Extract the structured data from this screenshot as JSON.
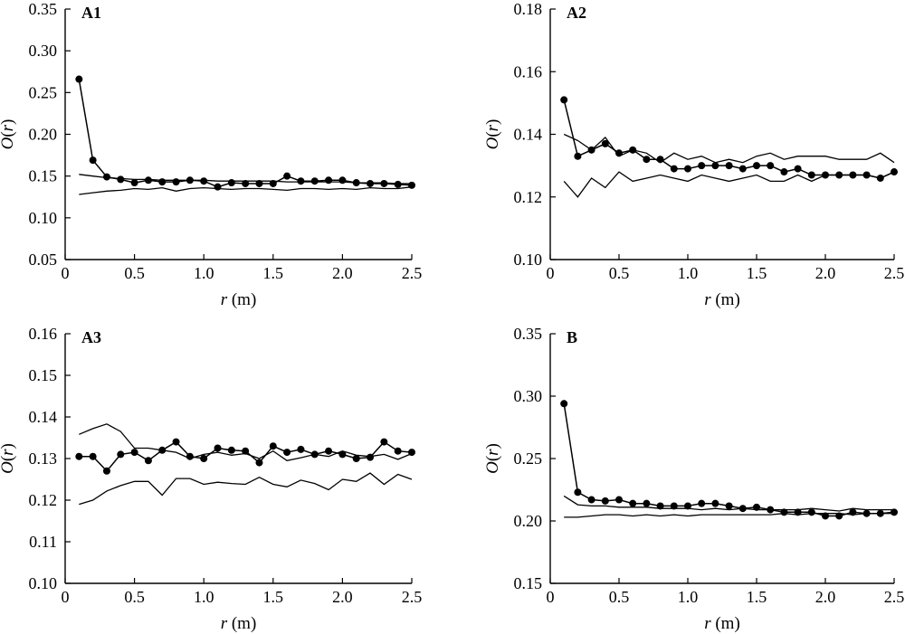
{
  "chart_data": [
    {
      "type": "line",
      "panel_label": "A1",
      "xlabel_var": "r",
      "xlabel_unit": " (m)",
      "ylabel_var": "r",
      "ylabel_fn": "O",
      "xlim": [
        0,
        2.5
      ],
      "ylim": [
        0.05,
        0.35
      ],
      "xticks": [
        0,
        0.5,
        1.0,
        1.5,
        2.0,
        2.5
      ],
      "xtick_labels": [
        "0",
        "0.5",
        "1.0",
        "1.5",
        "2.0",
        "2.5"
      ],
      "yticks": [
        0.05,
        0.1,
        0.15,
        0.2,
        0.25,
        0.3,
        0.35
      ],
      "ytick_labels": [
        "0.05",
        "0.10",
        "0.15",
        "0.20",
        "0.25",
        "0.30",
        "0.35"
      ],
      "x": [
        0.1,
        0.2,
        0.3,
        0.4,
        0.5,
        0.6,
        0.7,
        0.8,
        0.9,
        1.0,
        1.1,
        1.2,
        1.3,
        1.4,
        1.5,
        1.6,
        1.7,
        1.8,
        1.9,
        2.0,
        2.1,
        2.2,
        2.3,
        2.4,
        2.5
      ],
      "observed": [
        0.266,
        0.169,
        0.149,
        0.146,
        0.142,
        0.145,
        0.143,
        0.143,
        0.145,
        0.144,
        0.137,
        0.142,
        0.141,
        0.141,
        0.141,
        0.15,
        0.144,
        0.144,
        0.145,
        0.145,
        0.142,
        0.141,
        0.141,
        0.14,
        0.139
      ],
      "upper": [
        0.152,
        0.15,
        0.148,
        0.147,
        0.146,
        0.146,
        0.145,
        0.145,
        0.145,
        0.145,
        0.144,
        0.144,
        0.144,
        0.144,
        0.144,
        0.143,
        0.143,
        0.143,
        0.143,
        0.143,
        0.142,
        0.142,
        0.142,
        0.141,
        0.141
      ],
      "lower": [
        0.128,
        0.13,
        0.132,
        0.133,
        0.135,
        0.134,
        0.136,
        0.132,
        0.135,
        0.136,
        0.135,
        0.134,
        0.135,
        0.135,
        0.134,
        0.133,
        0.135,
        0.135,
        0.134,
        0.135,
        0.134,
        0.136,
        0.135,
        0.135,
        0.137
      ]
    },
    {
      "type": "line",
      "panel_label": "A2",
      "xlabel_var": "r",
      "xlabel_unit": " (m)",
      "ylabel_var": "r",
      "ylabel_fn": "O",
      "xlim": [
        0,
        2.5
      ],
      "ylim": [
        0.1,
        0.18
      ],
      "xticks": [
        0,
        0.5,
        1.0,
        1.5,
        2.0,
        2.5
      ],
      "xtick_labels": [
        "0",
        "0.5",
        "1.0",
        "1.5",
        "2.0",
        "2.5"
      ],
      "yticks": [
        0.1,
        0.12,
        0.14,
        0.16,
        0.18
      ],
      "ytick_labels": [
        "0.10",
        "0.12",
        "0.14",
        "0.16",
        "0.18"
      ],
      "x": [
        0.1,
        0.2,
        0.3,
        0.4,
        0.5,
        0.6,
        0.7,
        0.8,
        0.9,
        1.0,
        1.1,
        1.2,
        1.3,
        1.4,
        1.5,
        1.6,
        1.7,
        1.8,
        1.9,
        2.0,
        2.1,
        2.2,
        2.3,
        2.4,
        2.5
      ],
      "observed": [
        0.151,
        0.133,
        0.135,
        0.137,
        0.134,
        0.135,
        0.132,
        0.132,
        0.129,
        0.129,
        0.13,
        0.13,
        0.13,
        0.129,
        0.13,
        0.13,
        0.128,
        0.129,
        0.127,
        0.127,
        0.127,
        0.127,
        0.127,
        0.126,
        0.128
      ],
      "upper": [
        0.14,
        0.138,
        0.135,
        0.139,
        0.133,
        0.135,
        0.134,
        0.131,
        0.134,
        0.132,
        0.133,
        0.131,
        0.132,
        0.131,
        0.133,
        0.134,
        0.132,
        0.133,
        0.133,
        0.133,
        0.132,
        0.132,
        0.132,
        0.134,
        0.131
      ],
      "lower": [
        0.125,
        0.12,
        0.126,
        0.123,
        0.128,
        0.125,
        0.126,
        0.127,
        0.126,
        0.125,
        0.127,
        0.126,
        0.125,
        0.126,
        0.127,
        0.125,
        0.125,
        0.127,
        0.125,
        0.127,
        0.127,
        0.127,
        0.127,
        0.126,
        0.128
      ]
    },
    {
      "type": "line",
      "panel_label": "A3",
      "xlabel_var": "r",
      "xlabel_unit": " (m)",
      "ylabel_var": "r",
      "ylabel_fn": "O",
      "xlim": [
        0,
        2.5
      ],
      "ylim": [
        0.1,
        0.16
      ],
      "xticks": [
        0,
        0.5,
        1.0,
        1.5,
        2.0,
        2.5
      ],
      "xtick_labels": [
        "0",
        "0.5",
        "1.0",
        "1.5",
        "2.0",
        "2.5"
      ],
      "yticks": [
        0.1,
        0.11,
        0.12,
        0.13,
        0.14,
        0.15,
        0.16
      ],
      "ytick_labels": [
        "0.10",
        "0.11",
        "0.12",
        "0.13",
        "0.14",
        "0.15",
        "0.16"
      ],
      "x": [
        0.1,
        0.2,
        0.3,
        0.4,
        0.5,
        0.6,
        0.7,
        0.8,
        0.9,
        1.0,
        1.1,
        1.2,
        1.3,
        1.4,
        1.5,
        1.6,
        1.7,
        1.8,
        1.9,
        2.0,
        2.1,
        2.2,
        2.3,
        2.4,
        2.5
      ],
      "observed": [
        0.1305,
        0.1305,
        0.127,
        0.131,
        0.1315,
        0.1295,
        0.132,
        0.134,
        0.1305,
        0.13,
        0.1325,
        0.132,
        0.1318,
        0.129,
        0.133,
        0.1315,
        0.1322,
        0.131,
        0.1318,
        0.131,
        0.13,
        0.1303,
        0.134,
        0.1318,
        0.1315
      ],
      "upper": [
        0.1358,
        0.1372,
        0.1383,
        0.1365,
        0.1325,
        0.1325,
        0.132,
        0.1315,
        0.13,
        0.131,
        0.1315,
        0.1308,
        0.1312,
        0.13,
        0.1318,
        0.1295,
        0.1302,
        0.131,
        0.1305,
        0.1318,
        0.1308,
        0.1305,
        0.131,
        0.1298,
        0.1312
      ],
      "lower": [
        0.119,
        0.12,
        0.1222,
        0.1235,
        0.1245,
        0.1245,
        0.1212,
        0.1252,
        0.1252,
        0.1238,
        0.1243,
        0.124,
        0.1238,
        0.1255,
        0.1238,
        0.1232,
        0.1248,
        0.124,
        0.1225,
        0.125,
        0.1245,
        0.1265,
        0.1238,
        0.1262,
        0.125
      ]
    },
    {
      "type": "line",
      "panel_label": "B",
      "xlabel_var": "r",
      "xlabel_unit": " (m)",
      "ylabel_var": "r",
      "ylabel_fn": "O",
      "xlim": [
        0,
        2.5
      ],
      "ylim": [
        0.15,
        0.35
      ],
      "xticks": [
        0,
        0.5,
        1.0,
        1.5,
        2.0,
        2.5
      ],
      "xtick_labels": [
        "0",
        "0.5",
        "1.0",
        "1.5",
        "2.0",
        "2.5"
      ],
      "yticks": [
        0.15,
        0.2,
        0.25,
        0.3,
        0.35
      ],
      "ytick_labels": [
        "0.15",
        "0.20",
        "0.25",
        "0.30",
        "0.35"
      ],
      "x": [
        0.1,
        0.2,
        0.3,
        0.4,
        0.5,
        0.6,
        0.7,
        0.8,
        0.9,
        1.0,
        1.1,
        1.2,
        1.3,
        1.4,
        1.5,
        1.6,
        1.7,
        1.8,
        1.9,
        2.0,
        2.1,
        2.2,
        2.3,
        2.4,
        2.5
      ],
      "observed": [
        0.294,
        0.223,
        0.217,
        0.216,
        0.217,
        0.214,
        0.214,
        0.212,
        0.212,
        0.212,
        0.214,
        0.214,
        0.212,
        0.21,
        0.211,
        0.209,
        0.207,
        0.207,
        0.207,
        0.204,
        0.204,
        0.207,
        0.206,
        0.206,
        0.207
      ],
      "upper": [
        0.22,
        0.213,
        0.212,
        0.212,
        0.211,
        0.211,
        0.211,
        0.21,
        0.21,
        0.21,
        0.209,
        0.21,
        0.209,
        0.21,
        0.209,
        0.209,
        0.209,
        0.209,
        0.21,
        0.209,
        0.208,
        0.21,
        0.209,
        0.209,
        0.209
      ],
      "lower": [
        0.203,
        0.203,
        0.204,
        0.205,
        0.205,
        0.204,
        0.205,
        0.204,
        0.205,
        0.204,
        0.205,
        0.205,
        0.205,
        0.205,
        0.205,
        0.205,
        0.206,
        0.205,
        0.206,
        0.206,
        0.206,
        0.205,
        0.206,
        0.206,
        0.206
      ]
    }
  ]
}
